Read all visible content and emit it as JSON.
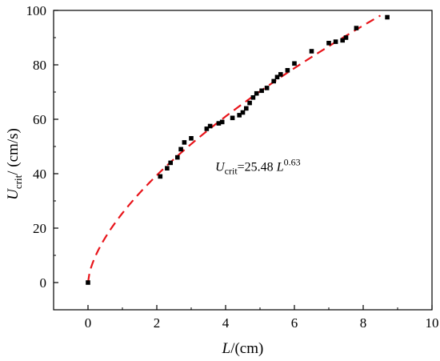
{
  "chart_data": {
    "type": "scatter",
    "title": "",
    "x_axis": {
      "label_main": "L",
      "label_unit": "/(cm)",
      "lim": [
        -1,
        10
      ],
      "major_ticks": [
        0,
        2,
        4,
        6,
        8,
        10
      ],
      "tick_labels": [
        "0",
        "2",
        "4",
        "6",
        "8",
        "10"
      ]
    },
    "y_axis": {
      "label_main": "U",
      "label_sub": "crit",
      "label_unit": "/ (cm/s)",
      "lim": [
        -10,
        100
      ],
      "major_ticks": [
        0,
        20,
        40,
        60,
        80,
        100
      ],
      "tick_labels": [
        "0",
        "20",
        "40",
        "60",
        "80",
        "100"
      ]
    },
    "grid": false,
    "series": [
      {
        "kind": "points",
        "marker": "square",
        "color": "#000000",
        "points": [
          [
            0,
            0
          ],
          [
            2.1,
            39
          ],
          [
            2.3,
            42
          ],
          [
            2.4,
            44
          ],
          [
            2.6,
            46
          ],
          [
            2.7,
            49
          ],
          [
            2.8,
            51.5
          ],
          [
            3.0,
            53
          ],
          [
            3.45,
            56.5
          ],
          [
            3.55,
            57.5
          ],
          [
            3.8,
            58.5
          ],
          [
            3.9,
            59
          ],
          [
            4.2,
            60.5
          ],
          [
            4.4,
            61.5
          ],
          [
            4.5,
            62.5
          ],
          [
            4.6,
            64
          ],
          [
            4.7,
            66
          ],
          [
            4.8,
            68
          ],
          [
            4.9,
            69.5
          ],
          [
            5.05,
            70.5
          ],
          [
            5.2,
            71.5
          ],
          [
            5.4,
            74
          ],
          [
            5.5,
            75.5
          ],
          [
            5.6,
            76.5
          ],
          [
            5.8,
            78
          ],
          [
            6.0,
            80.5
          ],
          [
            6.5,
            85
          ],
          [
            7.0,
            88
          ],
          [
            7.2,
            88.5
          ],
          [
            7.4,
            89
          ],
          [
            7.5,
            90
          ],
          [
            7.8,
            93.5
          ],
          [
            8.7,
            97.5
          ]
        ]
      },
      {
        "kind": "fit",
        "style": "dashed",
        "color": "#e8141a",
        "coefficient": 25.48,
        "exponent": 0.63,
        "x_range": [
          0,
          8.5
        ]
      }
    ],
    "annotation": {
      "main": "U",
      "sub": "crit",
      "eq": "=25.48 ",
      "var": "L",
      "sup": "0.63",
      "at": [
        3.7,
        41
      ]
    }
  }
}
